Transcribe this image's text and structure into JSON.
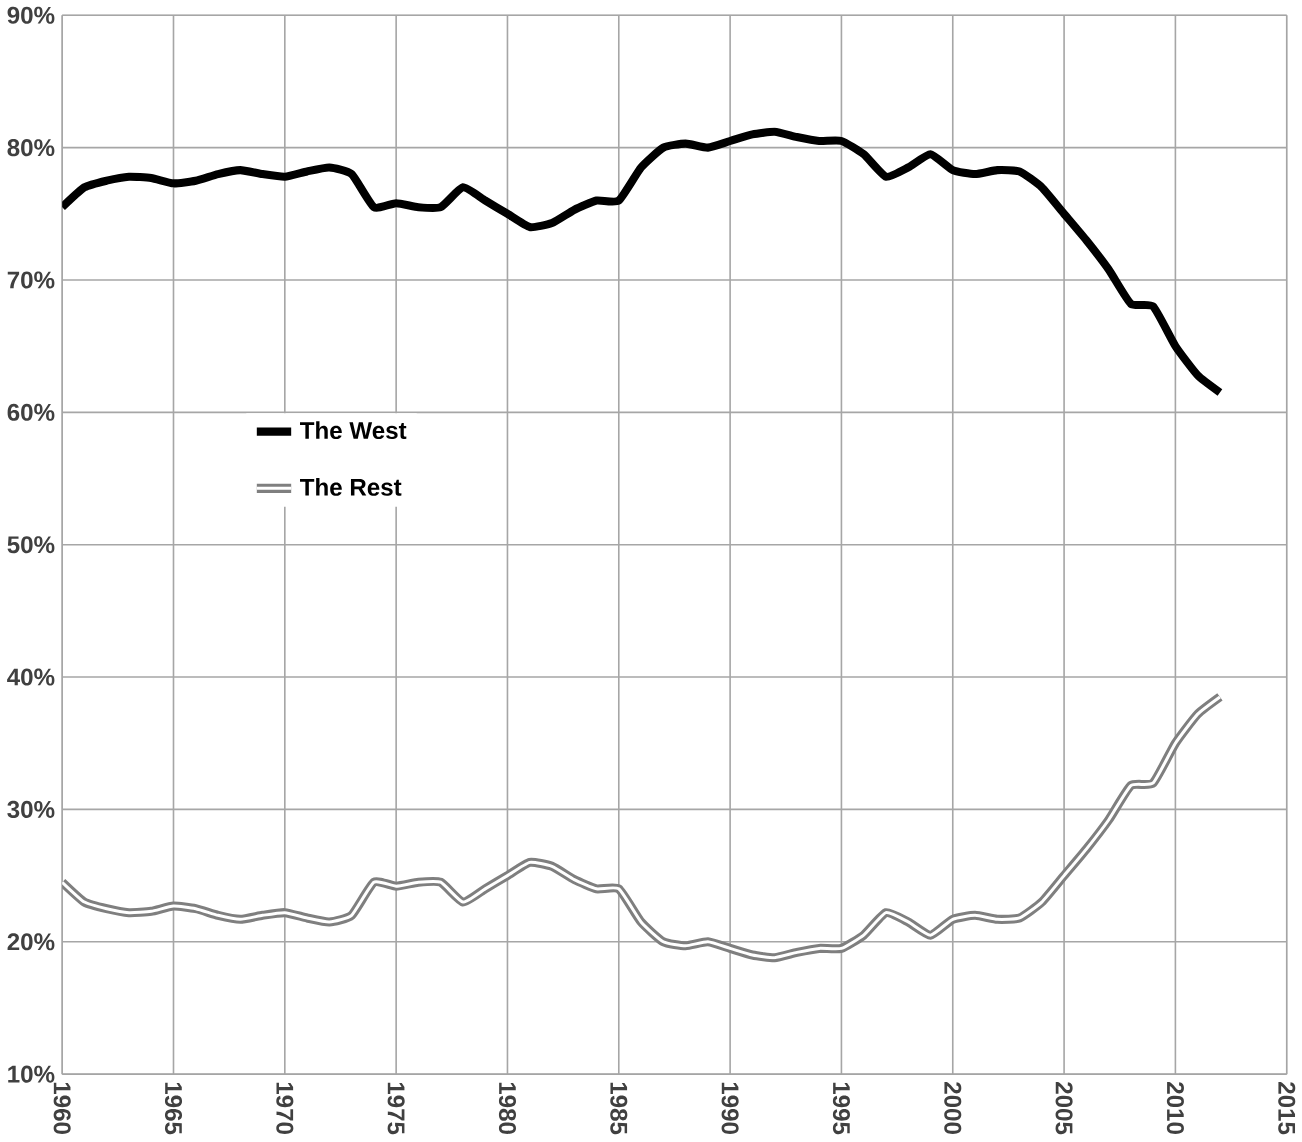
{
  "chart_data": {
    "type": "line",
    "x": [
      1960,
      1961,
      1962,
      1963,
      1964,
      1965,
      1966,
      1967,
      1968,
      1969,
      1970,
      1971,
      1972,
      1973,
      1974,
      1975,
      1976,
      1977,
      1978,
      1979,
      1980,
      1981,
      1982,
      1983,
      1984,
      1985,
      1986,
      1987,
      1988,
      1989,
      1990,
      1991,
      1992,
      1993,
      1994,
      1995,
      1996,
      1997,
      1998,
      1999,
      2000,
      2001,
      2002,
      2003,
      2004,
      2005,
      2006,
      2007,
      2008,
      2009,
      2010,
      2011,
      2012
    ],
    "series": [
      {
        "name": "The West",
        "color": "#000000",
        "values": [
          75.5,
          77,
          77.5,
          77.8,
          77.7,
          77.3,
          77.5,
          78,
          78.3,
          78,
          77.8,
          78.2,
          78.5,
          78,
          75.5,
          75.8,
          75.5,
          75.5,
          77,
          76,
          75,
          74,
          74.3,
          75.3,
          76,
          76,
          78.5,
          80,
          80.3,
          80,
          80.5,
          81,
          81.2,
          80.8,
          80.5,
          80.5,
          79.5,
          77.8,
          78.5,
          79.5,
          78.3,
          78,
          78.3,
          78.2,
          77,
          75,
          73,
          70.8,
          68.2,
          68,
          65,
          62.8,
          61.5
        ]
      },
      {
        "name": "The Rest",
        "color": "#7f7f7f",
        "values": [
          24.5,
          23,
          22.5,
          22.2,
          22.3,
          22.7,
          22.5,
          22,
          21.7,
          22,
          22.2,
          21.8,
          21.5,
          22,
          24.5,
          24.2,
          24.5,
          24.5,
          23,
          24,
          25,
          26,
          25.7,
          24.7,
          24,
          24,
          21.5,
          20,
          19.7,
          20,
          19.5,
          19,
          18.8,
          19.2,
          19.5,
          19.5,
          20.5,
          22.2,
          21.5,
          20.5,
          21.7,
          22,
          21.7,
          21.8,
          23,
          25,
          27,
          29.2,
          31.8,
          32,
          35,
          37.2,
          38.5
        ]
      }
    ],
    "xlim": [
      1960,
      2015
    ],
    "xticks": [
      1960,
      1965,
      1970,
      1975,
      1980,
      1985,
      1990,
      1995,
      2000,
      2005,
      2010,
      2015
    ],
    "ylim": [
      10,
      90
    ],
    "yticks": [
      {
        "value": 10,
        "label": "10%"
      },
      {
        "value": 20,
        "label": "20%"
      },
      {
        "value": 30,
        "label": "30%"
      },
      {
        "value": 40,
        "label": "40%"
      },
      {
        "value": 50,
        "label": "50%"
      },
      {
        "value": 60,
        "label": "60%"
      },
      {
        "value": 70,
        "label": "70%"
      },
      {
        "value": 80,
        "label": "80%"
      },
      {
        "value": 90,
        "label": "90%"
      }
    ],
    "grid": true,
    "legend": "left",
    "line_style": "solid",
    "marker": "none"
  }
}
